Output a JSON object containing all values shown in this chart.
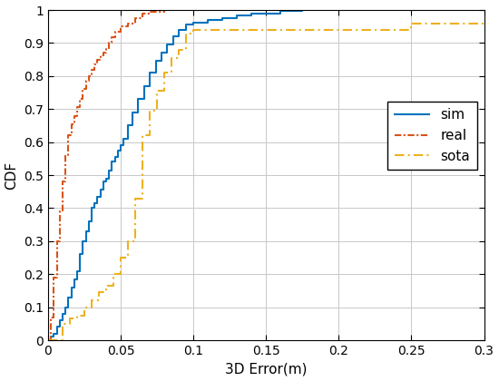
{
  "title": "",
  "xlabel": "3D Error(m)",
  "ylabel": "CDF",
  "xlim": [
    0,
    0.3
  ],
  "ylim": [
    0,
    1
  ],
  "xticks": [
    0,
    0.05,
    0.1,
    0.15,
    0.2,
    0.25,
    0.3
  ],
  "yticks": [
    0,
    0.1,
    0.2,
    0.3,
    0.4,
    0.5,
    0.6,
    0.7,
    0.8,
    0.9,
    1.0
  ],
  "legend_labels": [
    "sim",
    "real",
    "sota"
  ],
  "sim_color": "#0072BD",
  "real_color": "#D95319",
  "sota_color": "#EDB120",
  "sim_x": [
    0.0,
    0.002,
    0.004,
    0.006,
    0.008,
    0.01,
    0.012,
    0.014,
    0.016,
    0.018,
    0.02,
    0.022,
    0.024,
    0.026,
    0.028,
    0.03,
    0.032,
    0.034,
    0.036,
    0.038,
    0.04,
    0.042,
    0.044,
    0.046,
    0.048,
    0.05,
    0.052,
    0.055,
    0.058,
    0.062,
    0.066,
    0.07,
    0.074,
    0.078,
    0.082,
    0.086,
    0.09,
    0.095,
    0.1,
    0.11,
    0.12,
    0.13,
    0.14,
    0.16,
    0.175
  ],
  "sim_y": [
    0.0,
    0.01,
    0.02,
    0.04,
    0.06,
    0.08,
    0.1,
    0.13,
    0.16,
    0.185,
    0.21,
    0.26,
    0.3,
    0.33,
    0.36,
    0.4,
    0.415,
    0.435,
    0.455,
    0.48,
    0.49,
    0.515,
    0.54,
    0.555,
    0.575,
    0.59,
    0.61,
    0.65,
    0.69,
    0.73,
    0.77,
    0.81,
    0.845,
    0.87,
    0.895,
    0.92,
    0.94,
    0.955,
    0.963,
    0.97,
    0.976,
    0.983,
    0.99,
    0.998,
    1.0
  ],
  "real_x": [
    0.0,
    0.002,
    0.004,
    0.006,
    0.008,
    0.01,
    0.012,
    0.014,
    0.016,
    0.018,
    0.02,
    0.022,
    0.024,
    0.026,
    0.028,
    0.03,
    0.032,
    0.034,
    0.036,
    0.038,
    0.04,
    0.042,
    0.044,
    0.046,
    0.05,
    0.055,
    0.06,
    0.065,
    0.07,
    0.08
  ],
  "real_y": [
    0.0,
    0.07,
    0.19,
    0.3,
    0.39,
    0.48,
    0.56,
    0.62,
    0.655,
    0.68,
    0.705,
    0.73,
    0.76,
    0.785,
    0.8,
    0.82,
    0.835,
    0.85,
    0.862,
    0.872,
    0.882,
    0.9,
    0.918,
    0.935,
    0.95,
    0.96,
    0.975,
    0.988,
    0.995,
    1.0
  ],
  "sota_x": [
    0.0,
    0.01,
    0.015,
    0.02,
    0.025,
    0.03,
    0.035,
    0.04,
    0.045,
    0.05,
    0.055,
    0.06,
    0.065,
    0.07,
    0.075,
    0.08,
    0.085,
    0.09,
    0.095,
    0.1,
    0.11,
    0.13,
    0.15,
    0.2,
    0.245,
    0.25,
    0.26,
    0.3
  ],
  "sota_y": [
    0.0,
    0.05,
    0.065,
    0.075,
    0.1,
    0.12,
    0.145,
    0.165,
    0.2,
    0.25,
    0.3,
    0.43,
    0.62,
    0.695,
    0.755,
    0.81,
    0.855,
    0.88,
    0.93,
    0.94,
    0.94,
    0.94,
    0.94,
    0.94,
    0.94,
    0.96,
    0.96,
    0.96
  ],
  "background_color": "#ffffff",
  "grid_color": "#c8c8c8",
  "linewidth": 1.5
}
